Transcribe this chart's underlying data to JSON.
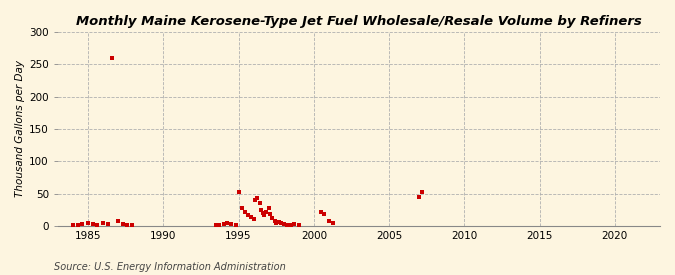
{
  "title": "Monthly Maine Kerosene-Type Jet Fuel Wholesale/Resale Volume by Refiners",
  "ylabel": "Thousand Gallons per Day",
  "source": "Source: U.S. Energy Information Administration",
  "background_color": "#fdf5e0",
  "plot_bg_color": "#fdf5e0",
  "scatter_color": "#cc0000",
  "xlim": [
    1983.0,
    2023.0
  ],
  "ylim": [
    0,
    300
  ],
  "xticks": [
    1985,
    1990,
    1995,
    2000,
    2005,
    2010,
    2015,
    2020
  ],
  "yticks": [
    0,
    50,
    100,
    150,
    200,
    250,
    300
  ],
  "data_points": [
    [
      1984.0,
      2.0
    ],
    [
      1984.3,
      1.0
    ],
    [
      1984.6,
      3.0
    ],
    [
      1985.0,
      4.0
    ],
    [
      1985.3,
      3.0
    ],
    [
      1985.6,
      2.0
    ],
    [
      1986.0,
      5.0
    ],
    [
      1986.3,
      3.0
    ],
    [
      1986.6,
      260.0
    ],
    [
      1987.0,
      7.0
    ],
    [
      1987.3,
      3.0
    ],
    [
      1987.6,
      2.0
    ],
    [
      1987.9,
      2.0
    ],
    [
      1993.5,
      2.0
    ],
    [
      1993.7,
      2.0
    ],
    [
      1994.0,
      3.0
    ],
    [
      1994.2,
      4.0
    ],
    [
      1994.5,
      3.0
    ],
    [
      1994.8,
      2.0
    ],
    [
      1995.0,
      52.0
    ],
    [
      1995.2,
      28.0
    ],
    [
      1995.4,
      22.0
    ],
    [
      1995.6,
      17.0
    ],
    [
      1995.8,
      13.0
    ],
    [
      1996.0,
      10.0
    ],
    [
      1996.1,
      40.0
    ],
    [
      1996.2,
      43.0
    ],
    [
      1996.4,
      35.0
    ],
    [
      1996.5,
      25.0
    ],
    [
      1996.6,
      20.0
    ],
    [
      1996.7,
      17.0
    ],
    [
      1996.8,
      22.0
    ],
    [
      1997.0,
      28.0
    ],
    [
      1997.1,
      18.0
    ],
    [
      1997.2,
      12.0
    ],
    [
      1997.4,
      8.0
    ],
    [
      1997.5,
      5.0
    ],
    [
      1997.7,
      6.0
    ],
    [
      1997.8,
      4.0
    ],
    [
      1998.0,
      3.0
    ],
    [
      1998.2,
      2.0
    ],
    [
      1998.5,
      2.0
    ],
    [
      1998.7,
      3.0
    ],
    [
      1999.0,
      2.0
    ],
    [
      2000.5,
      22.0
    ],
    [
      2000.7,
      18.0
    ],
    [
      2001.0,
      7.0
    ],
    [
      2001.3,
      5.0
    ],
    [
      2007.0,
      45.0
    ],
    [
      2007.2,
      52.0
    ]
  ]
}
